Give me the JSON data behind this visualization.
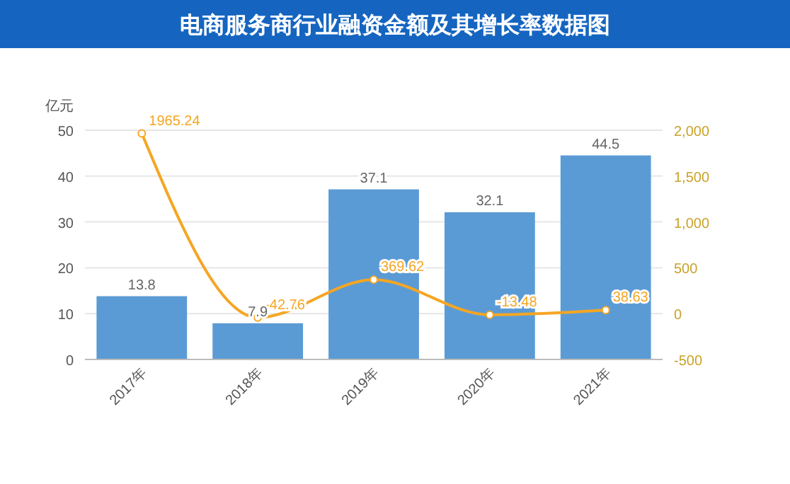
{
  "chart_data": {
    "type": "bar",
    "title": "电商服务商行业融资金额及其增长率数据图",
    "ylabel": "亿元",
    "categories": [
      "2017年",
      "2018年",
      "2019年",
      "2020年",
      "2021年"
    ],
    "series": [
      {
        "color": "#5b9bd5",
        "values": [
          13.8,
          7.9,
          37.1,
          32.1,
          44.5
        ]
      },
      {
        "type": "line",
        "axis": "y2",
        "color": "#f5a623",
        "marker": "circle",
        "values": [
          1965.24,
          -42.76,
          369.62,
          -13.48,
          38.63
        ]
      }
    ],
    "ylim": [
      0,
      50
    ],
    "yticks": [
      0,
      10,
      20,
      30,
      40,
      50
    ],
    "y2lim": [
      -500,
      2000
    ],
    "y2ticks": [
      {
        "value": -500,
        "label": "-500"
      },
      0,
      500,
      {
        "value": 1000,
        "label": "1,000"
      },
      {
        "value": 1500,
        "label": "1,500"
      },
      {
        "value": 2000,
        "label": "2,000"
      }
    ],
    "grid": "y",
    "data_labels": true
  }
}
